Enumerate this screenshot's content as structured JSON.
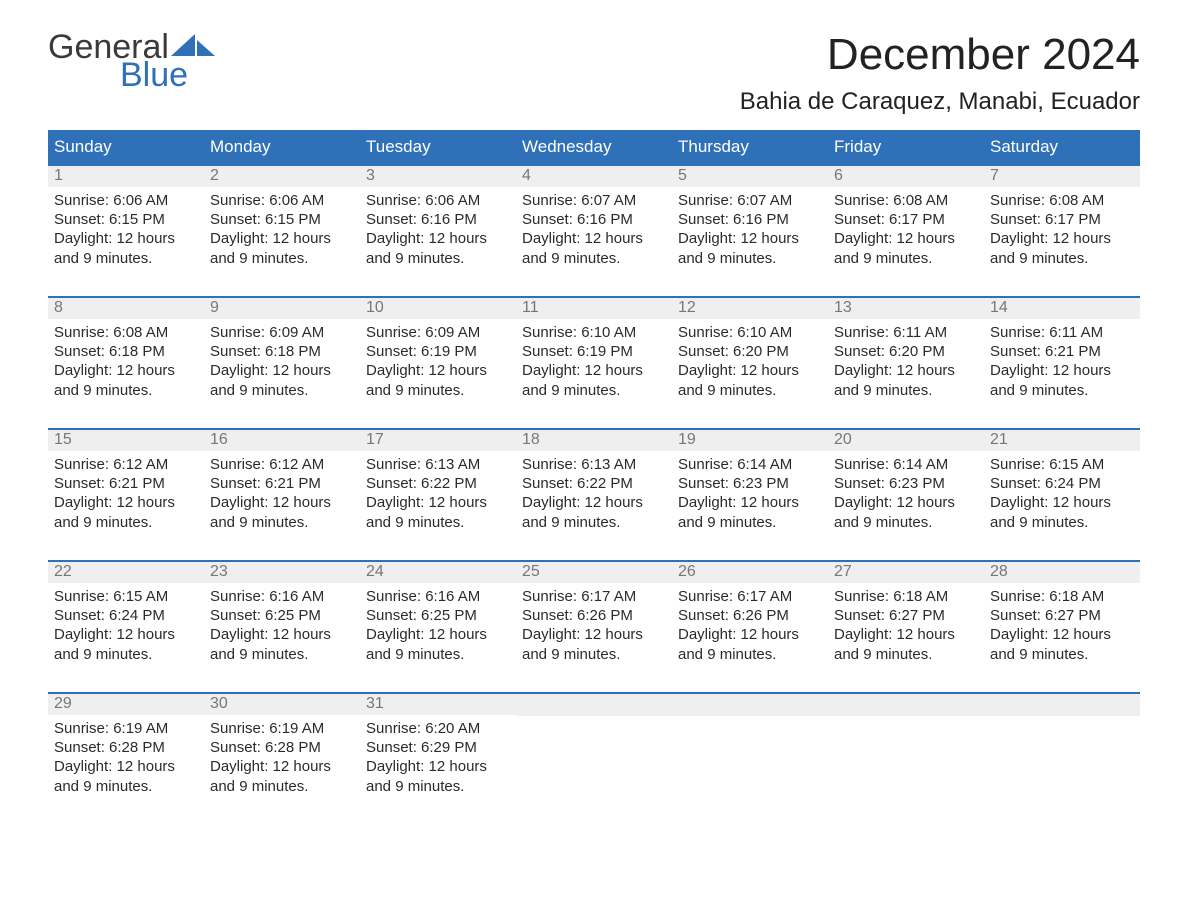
{
  "logo": {
    "text_general": "General",
    "text_blue": "Blue",
    "accent_color": "#2f71b8"
  },
  "title": "December 2024",
  "location": "Bahia de Caraquez, Manabi, Ecuador",
  "colors": {
    "header_bg": "#2f71b8",
    "header_text": "#ffffff",
    "daynum_bg": "#efefef",
    "daynum_text": "#777777",
    "body_text": "#2b2b2b",
    "week_border": "#2f71b8",
    "page_bg": "#ffffff"
  },
  "fonts": {
    "title_pt": 44,
    "location_pt": 24,
    "dow_pt": 17,
    "daynum_pt": 16,
    "body_pt": 15
  },
  "days_of_week": [
    "Sunday",
    "Monday",
    "Tuesday",
    "Wednesday",
    "Thursday",
    "Friday",
    "Saturday"
  ],
  "field_labels": {
    "sunrise": "Sunrise",
    "sunset": "Sunset",
    "daylight": "Daylight"
  },
  "weeks": [
    [
      {
        "day": 1,
        "sunrise": "6:06 AM",
        "sunset": "6:15 PM",
        "daylight": "12 hours and 9 minutes."
      },
      {
        "day": 2,
        "sunrise": "6:06 AM",
        "sunset": "6:15 PM",
        "daylight": "12 hours and 9 minutes."
      },
      {
        "day": 3,
        "sunrise": "6:06 AM",
        "sunset": "6:16 PM",
        "daylight": "12 hours and 9 minutes."
      },
      {
        "day": 4,
        "sunrise": "6:07 AM",
        "sunset": "6:16 PM",
        "daylight": "12 hours and 9 minutes."
      },
      {
        "day": 5,
        "sunrise": "6:07 AM",
        "sunset": "6:16 PM",
        "daylight": "12 hours and 9 minutes."
      },
      {
        "day": 6,
        "sunrise": "6:08 AM",
        "sunset": "6:17 PM",
        "daylight": "12 hours and 9 minutes."
      },
      {
        "day": 7,
        "sunrise": "6:08 AM",
        "sunset": "6:17 PM",
        "daylight": "12 hours and 9 minutes."
      }
    ],
    [
      {
        "day": 8,
        "sunrise": "6:08 AM",
        "sunset": "6:18 PM",
        "daylight": "12 hours and 9 minutes."
      },
      {
        "day": 9,
        "sunrise": "6:09 AM",
        "sunset": "6:18 PM",
        "daylight": "12 hours and 9 minutes."
      },
      {
        "day": 10,
        "sunrise": "6:09 AM",
        "sunset": "6:19 PM",
        "daylight": "12 hours and 9 minutes."
      },
      {
        "day": 11,
        "sunrise": "6:10 AM",
        "sunset": "6:19 PM",
        "daylight": "12 hours and 9 minutes."
      },
      {
        "day": 12,
        "sunrise": "6:10 AM",
        "sunset": "6:20 PM",
        "daylight": "12 hours and 9 minutes."
      },
      {
        "day": 13,
        "sunrise": "6:11 AM",
        "sunset": "6:20 PM",
        "daylight": "12 hours and 9 minutes."
      },
      {
        "day": 14,
        "sunrise": "6:11 AM",
        "sunset": "6:21 PM",
        "daylight": "12 hours and 9 minutes."
      }
    ],
    [
      {
        "day": 15,
        "sunrise": "6:12 AM",
        "sunset": "6:21 PM",
        "daylight": "12 hours and 9 minutes."
      },
      {
        "day": 16,
        "sunrise": "6:12 AM",
        "sunset": "6:21 PM",
        "daylight": "12 hours and 9 minutes."
      },
      {
        "day": 17,
        "sunrise": "6:13 AM",
        "sunset": "6:22 PM",
        "daylight": "12 hours and 9 minutes."
      },
      {
        "day": 18,
        "sunrise": "6:13 AM",
        "sunset": "6:22 PM",
        "daylight": "12 hours and 9 minutes."
      },
      {
        "day": 19,
        "sunrise": "6:14 AM",
        "sunset": "6:23 PM",
        "daylight": "12 hours and 9 minutes."
      },
      {
        "day": 20,
        "sunrise": "6:14 AM",
        "sunset": "6:23 PM",
        "daylight": "12 hours and 9 minutes."
      },
      {
        "day": 21,
        "sunrise": "6:15 AM",
        "sunset": "6:24 PM",
        "daylight": "12 hours and 9 minutes."
      }
    ],
    [
      {
        "day": 22,
        "sunrise": "6:15 AM",
        "sunset": "6:24 PM",
        "daylight": "12 hours and 9 minutes."
      },
      {
        "day": 23,
        "sunrise": "6:16 AM",
        "sunset": "6:25 PM",
        "daylight": "12 hours and 9 minutes."
      },
      {
        "day": 24,
        "sunrise": "6:16 AM",
        "sunset": "6:25 PM",
        "daylight": "12 hours and 9 minutes."
      },
      {
        "day": 25,
        "sunrise": "6:17 AM",
        "sunset": "6:26 PM",
        "daylight": "12 hours and 9 minutes."
      },
      {
        "day": 26,
        "sunrise": "6:17 AM",
        "sunset": "6:26 PM",
        "daylight": "12 hours and 9 minutes."
      },
      {
        "day": 27,
        "sunrise": "6:18 AM",
        "sunset": "6:27 PM",
        "daylight": "12 hours and 9 minutes."
      },
      {
        "day": 28,
        "sunrise": "6:18 AM",
        "sunset": "6:27 PM",
        "daylight": "12 hours and 9 minutes."
      }
    ],
    [
      {
        "day": 29,
        "sunrise": "6:19 AM",
        "sunset": "6:28 PM",
        "daylight": "12 hours and 9 minutes."
      },
      {
        "day": 30,
        "sunrise": "6:19 AM",
        "sunset": "6:28 PM",
        "daylight": "12 hours and 9 minutes."
      },
      {
        "day": 31,
        "sunrise": "6:20 AM",
        "sunset": "6:29 PM",
        "daylight": "12 hours and 9 minutes."
      },
      null,
      null,
      null,
      null
    ]
  ]
}
